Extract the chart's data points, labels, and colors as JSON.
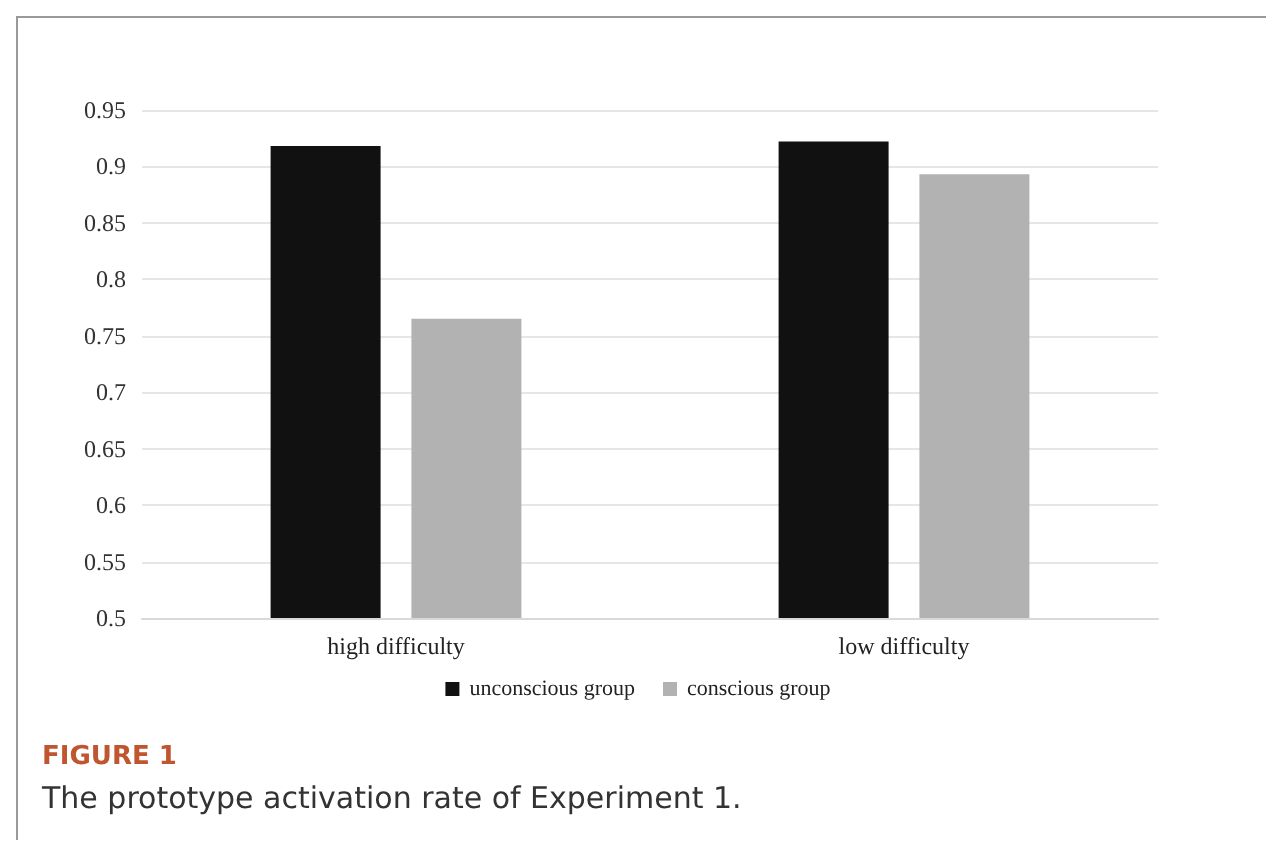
{
  "chart_data": {
    "type": "bar",
    "categories": [
      "high difficulty",
      "low difficulty"
    ],
    "series": [
      {
        "name": "unconscious group",
        "color": "#111111",
        "values": [
          0.918,
          0.922
        ]
      },
      {
        "name": "conscious group",
        "color": "#b2b2b2",
        "values": [
          0.765,
          0.893
        ]
      }
    ],
    "ylim": [
      0.5,
      0.95
    ],
    "yticks": [
      0.5,
      0.55,
      0.6,
      0.65,
      0.7,
      0.75,
      0.8,
      0.85,
      0.9,
      0.95
    ],
    "grid": "y",
    "legend": "bottom",
    "annotations": [
      "FIGURE 1",
      "The prototype activation rate of Experiment 1."
    ]
  }
}
